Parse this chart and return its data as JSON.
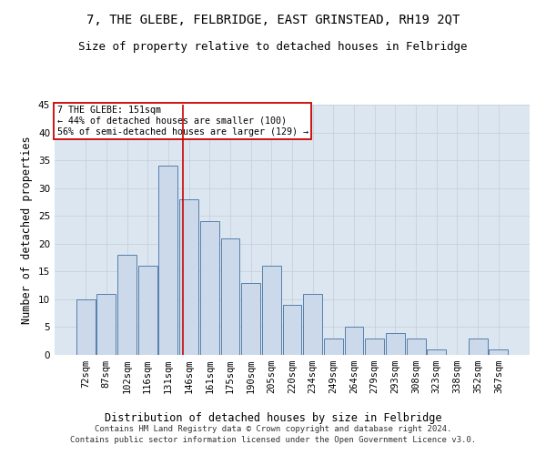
{
  "title": "7, THE GLEBE, FELBRIDGE, EAST GRINSTEAD, RH19 2QT",
  "subtitle": "Size of property relative to detached houses in Felbridge",
  "xlabel": "Distribution of detached houses by size in Felbridge",
  "ylabel": "Number of detached properties",
  "bar_labels": [
    "72sqm",
    "87sqm",
    "102sqm",
    "116sqm",
    "131sqm",
    "146sqm",
    "161sqm",
    "175sqm",
    "190sqm",
    "205sqm",
    "220sqm",
    "234sqm",
    "249sqm",
    "264sqm",
    "279sqm",
    "293sqm",
    "308sqm",
    "323sqm",
    "338sqm",
    "352sqm",
    "367sqm"
  ],
  "bar_heights": [
    10,
    11,
    18,
    16,
    34,
    28,
    24,
    21,
    13,
    16,
    9,
    11,
    3,
    5,
    3,
    4,
    3,
    1,
    0,
    3,
    1
  ],
  "bar_color": "#ccd9ea",
  "bar_edge_color": "#5580aa",
  "grid_color": "#c8d0dc",
  "background_color": "#dce6f0",
  "red_line_x": 4.73,
  "annotation_title": "7 THE GLEBE: 151sqm",
  "annotation_line1": "← 44% of detached houses are smaller (100)",
  "annotation_line2": "56% of semi-detached houses are larger (129) →",
  "annotation_box_color": "#ffffff",
  "annotation_border_color": "#cc0000",
  "footer_line1": "Contains HM Land Registry data © Crown copyright and database right 2024.",
  "footer_line2": "Contains public sector information licensed under the Open Government Licence v3.0.",
  "ylim": [
    0,
    45
  ],
  "yticks": [
    0,
    5,
    10,
    15,
    20,
    25,
    30,
    35,
    40,
    45
  ],
  "title_fontsize": 10,
  "subtitle_fontsize": 9,
  "xlabel_fontsize": 8.5,
  "ylabel_fontsize": 8.5,
  "tick_fontsize": 7.5,
  "footer_fontsize": 6.5
}
